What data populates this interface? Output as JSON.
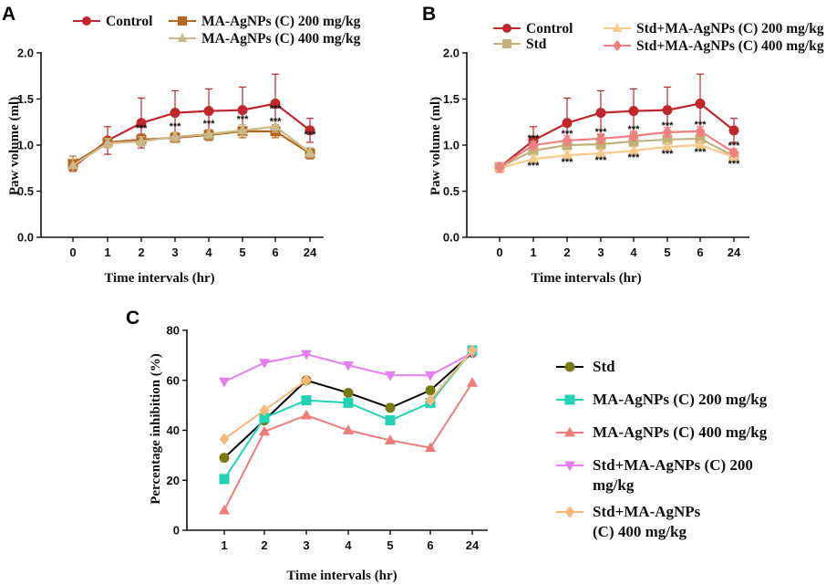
{
  "chart_data": [
    {
      "panel": "A",
      "type": "line",
      "xlabel": "Time intervals (hr)",
      "ylabel": "Paw volume (ml)",
      "categories": [
        "0",
        "1",
        "2",
        "3",
        "4",
        "5",
        "6",
        "24"
      ],
      "ylim": [
        0,
        2
      ],
      "yticks": [
        "0.0",
        "0.5",
        "1.0",
        "1.5",
        "2.0"
      ],
      "series": [
        {
          "name": "Control",
          "color": "#c0272d",
          "marker": "circle",
          "values": [
            0.76,
            1.05,
            1.24,
            1.35,
            1.37,
            1.38,
            1.45,
            1.16
          ],
          "errors": [
            0.05,
            0.15,
            0.27,
            0.24,
            0.24,
            0.25,
            0.32,
            0.13
          ]
        },
        {
          "name": "MA-AgNPs (C) 200 mg/kg",
          "color": "#b5651d",
          "marker": "square",
          "values": [
            0.8,
            1.03,
            1.06,
            1.08,
            1.11,
            1.15,
            1.15,
            0.91
          ],
          "errors": [
            0.08,
            0.05,
            0.06,
            0.05,
            0.06,
            0.07,
            0.07,
            0.06
          ]
        },
        {
          "name": "MA-AgNPs (C) 400 mg/kg",
          "color": "#cbb98a",
          "marker": "triangle",
          "values": [
            0.78,
            1.02,
            1.04,
            1.09,
            1.12,
            1.16,
            1.2,
            0.92
          ],
          "errors": [
            0.07,
            0.05,
            0.05,
            0.05,
            0.05,
            0.06,
            0.06,
            0.05
          ]
        }
      ],
      "annotations": [
        {
          "x": "2",
          "text": "***"
        },
        {
          "x": "3",
          "text": "***"
        },
        {
          "x": "4",
          "text": "***"
        },
        {
          "x": "5",
          "text": "***"
        },
        {
          "x": "6",
          "text": "***"
        },
        {
          "x": "6",
          "text": "***"
        },
        {
          "x": "24",
          "text": "***"
        }
      ]
    },
    {
      "panel": "B",
      "type": "line",
      "xlabel": "Time intervals (hr)",
      "ylabel": "Paw volume (ml)",
      "categories": [
        "0",
        "1",
        "2",
        "3",
        "4",
        "5",
        "6",
        "24"
      ],
      "ylim": [
        0,
        2
      ],
      "yticks": [
        "0.0",
        "0.5",
        "1.0",
        "1.5",
        "2.0"
      ],
      "series": [
        {
          "name": "Control",
          "color": "#c0272d",
          "marker": "circle",
          "values": [
            0.76,
            1.05,
            1.24,
            1.35,
            1.37,
            1.38,
            1.45,
            1.16
          ],
          "errors": [
            0.05,
            0.15,
            0.27,
            0.24,
            0.24,
            0.25,
            0.32,
            0.13
          ]
        },
        {
          "name": "Std",
          "color": "#c2b07a",
          "marker": "square",
          "values": [
            0.76,
            0.94,
            1.0,
            1.01,
            1.04,
            1.06,
            1.07,
            0.88
          ],
          "errors": [
            0.05,
            0.04,
            0.04,
            0.04,
            0.04,
            0.04,
            0.04,
            0.04
          ]
        },
        {
          "name": "Std+MA-AgNPs (C) 200 mg/kg",
          "color": "#f7c98b",
          "marker": "triangle",
          "values": [
            0.75,
            0.85,
            0.89,
            0.91,
            0.94,
            0.98,
            1.0,
            0.87
          ],
          "errors": [
            0.05,
            0.04,
            0.04,
            0.04,
            0.04,
            0.04,
            0.04,
            0.04
          ]
        },
        {
          "name": "Std+MA-AgNPs (C) 400 mg/kg",
          "color": "#f08080",
          "marker": "diamond",
          "values": [
            0.76,
            1.0,
            1.05,
            1.07,
            1.1,
            1.14,
            1.15,
            0.92
          ],
          "errors": [
            0.05,
            0.04,
            0.05,
            0.05,
            0.05,
            0.05,
            0.05,
            0.04
          ]
        }
      ],
      "annotations": [
        {
          "x": "1",
          "text": "***"
        },
        {
          "x": "1",
          "text": "***"
        },
        {
          "x": "2",
          "text": "***"
        },
        {
          "x": "2",
          "text": "***"
        },
        {
          "x": "3",
          "text": "***"
        },
        {
          "x": "3",
          "text": "***"
        },
        {
          "x": "4",
          "text": "***"
        },
        {
          "x": "4",
          "text": "***"
        },
        {
          "x": "5",
          "text": "***"
        },
        {
          "x": "5",
          "text": "***"
        },
        {
          "x": "6",
          "text": "***"
        },
        {
          "x": "6",
          "text": "***"
        },
        {
          "x": "24",
          "text": "***"
        },
        {
          "x": "24",
          "text": "***"
        }
      ]
    },
    {
      "panel": "C",
      "type": "line",
      "xlabel": "Time intervals (hr)",
      "ylabel": "Percentage inhibition (%)",
      "categories": [
        "1",
        "2",
        "3",
        "4",
        "5",
        "6",
        "24"
      ],
      "ylim": [
        0,
        80
      ],
      "yticks": [
        "0",
        "20",
        "40",
        "60",
        "80"
      ],
      "series": [
        {
          "name": "Std",
          "color": "#7a7a14",
          "marker": "circle",
          "line": "#000000",
          "values": [
            29,
            44,
            60,
            55,
            49,
            56,
            71
          ]
        },
        {
          "name": "MA-AgNPs (C) 200 mg/kg",
          "color": "#1fd3b3",
          "marker": "square",
          "values": [
            20.5,
            45,
            52,
            51,
            44,
            51,
            72
          ]
        },
        {
          "name": "MA-AgNPs (C) 400 mg/kg",
          "color": "#f07b7b",
          "marker": "triangle",
          "values": [
            8,
            39.5,
            46,
            40,
            36,
            33,
            59
          ]
        },
        {
          "name": "Std+MA-AgNPs (C) 200 mg/kg",
          "color": "#e57ef2",
          "marker": "triangle-down",
          "values": [
            59.5,
            67,
            70.5,
            66,
            62,
            62,
            71
          ]
        },
        {
          "name": "Std+MA-AgNPs (C) 400 mg/kg",
          "color": "#f7b97a",
          "marker": "diamond",
          "values": [
            36.5,
            48,
            60,
            null,
            null,
            52,
            72
          ]
        }
      ],
      "legend_lines": [
        [
          "Std"
        ],
        [
          "MA-AgNPs (C) 200 mg/kg"
        ],
        [
          "MA-AgNPs (C) 400 mg/kg"
        ],
        [
          "Std+MA-AgNPs (C) 200",
          "mg/kg"
        ],
        [
          "Std+MA-AgNPs",
          "(C) 400 mg/kg"
        ]
      ]
    }
  ]
}
